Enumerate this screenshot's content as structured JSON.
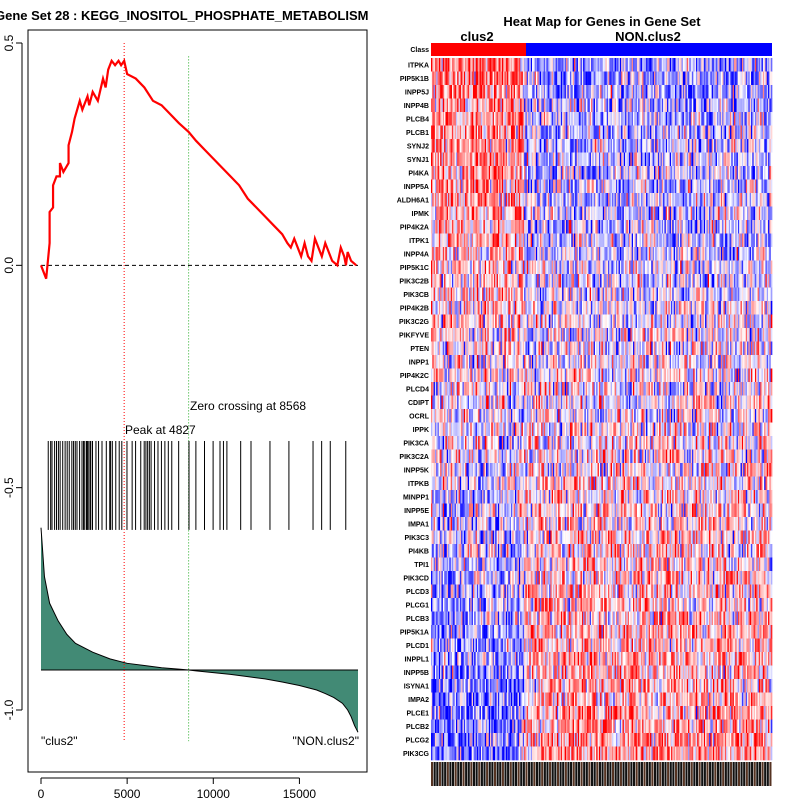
{
  "left_panel": {
    "title": "Gene Set  28 : KEGG_INOSITOL_PHOSPHATE_METABOLISM",
    "peak_label": "Peak at 4827",
    "zero_crossing_label": "Zero crossing at 8568",
    "left_class_label": "\"clus2\"",
    "right_class_label": "\"NON.clus2\"",
    "x_tick_labels": [
      "0",
      "5000",
      "10000",
      "15000"
    ],
    "y_tick_labels": [
      "0.5",
      "0.0",
      "-0.5",
      "-1.0"
    ]
  },
  "right_panel": {
    "title": "Heat Map for Genes in Gene Set",
    "class_row_label": "Class",
    "class_left_label": "clus2",
    "class_right_label": "NON.clus2",
    "class_left_color": "#ff0000",
    "class_right_color": "#0000ff",
    "genes": [
      "ITPKA",
      "PIP5K1B",
      "INPP5J",
      "INPP4B",
      "PLCB4",
      "PLCB1",
      "SYNJ2",
      "SYNJ1",
      "PI4KA",
      "INPP5A",
      "ALDH6A1",
      "IPMK",
      "PIP4K2A",
      "ITPK1",
      "INPP4A",
      "PIP5K1C",
      "PIK3C2B",
      "PIK3CB",
      "PIP4K2B",
      "PIK3C2G",
      "PIKFYVE",
      "PTEN",
      "INPP1",
      "PIP4K2C",
      "PLCD4",
      "CDIPT",
      "OCRL",
      "IPPK",
      "PIK3CA",
      "PIK3C2A",
      "INPP5K",
      "ITPKB",
      "MINPP1",
      "INPP5E",
      "IMPA1",
      "PIK3C3",
      "PI4KB",
      "TPI1",
      "PIK3CD",
      "PLCD3",
      "PLCG1",
      "PLCB3",
      "PIP5K1A",
      "PLCD1",
      "INPPL1",
      "INPP5B",
      "ISYNA1",
      "IMPA2",
      "PLCE1",
      "PLCB2",
      "PLCG2",
      "PIK3CG"
    ]
  },
  "chart_data": [
    {
      "type": "line",
      "title": "Gene Set  28 : KEGG_INOSITOL_PHOSPHATE_METABOLISM",
      "xlabel": "",
      "ylabel": "",
      "xlim": [
        -1000,
        19000
      ],
      "ylim": [
        -1.13,
        0.53
      ],
      "x_ticks": [
        0,
        5000,
        10000,
        15000
      ],
      "y_ticks": [
        0.5,
        0.0,
        -0.5,
        -1.0
      ],
      "series": [
        {
          "name": "Running enrichment score",
          "color": "#ff0000",
          "x": [
            0,
            300,
            500,
            500,
            700,
            700,
            900,
            1100,
            1100,
            1300,
            1600,
            1600,
            1800,
            1950,
            2100,
            2250,
            2400,
            2700,
            2800,
            3000,
            3300,
            3600,
            3750,
            3900,
            4100,
            4300,
            4500,
            4650,
            4827,
            5000,
            5500,
            6000,
            6500,
            7000,
            7500,
            8000,
            8568,
            9000,
            9500,
            10000,
            10500,
            11000,
            11500,
            12000,
            12500,
            13000,
            13500,
            14000,
            14300,
            14500,
            14700,
            14900,
            15100,
            15300,
            15500,
            15700,
            15900,
            16100,
            16300,
            16500,
            16700,
            16900,
            17200,
            17400,
            17600,
            17700,
            17800,
            18000,
            18300
          ],
          "y": [
            0.0,
            -0.03,
            0.05,
            0.12,
            0.13,
            0.18,
            0.2,
            0.2,
            0.23,
            0.21,
            0.23,
            0.27,
            0.3,
            0.33,
            0.35,
            0.37,
            0.35,
            0.38,
            0.36,
            0.39,
            0.37,
            0.42,
            0.4,
            0.44,
            0.46,
            0.45,
            0.46,
            0.45,
            0.46,
            0.43,
            0.42,
            0.4,
            0.37,
            0.36,
            0.34,
            0.32,
            0.3,
            0.28,
            0.26,
            0.24,
            0.22,
            0.2,
            0.18,
            0.15,
            0.13,
            0.11,
            0.09,
            0.07,
            0.05,
            0.04,
            0.06,
            0.04,
            0.02,
            0.05,
            0.02,
            0.01,
            0.06,
            0.04,
            0.02,
            0.05,
            0.03,
            0.01,
            0.0,
            0.04,
            0.02,
            0.0,
            0.03,
            0.01,
            0.0
          ]
        }
      ],
      "baseline_y": 0.0,
      "peak_x": 4827,
      "zero_crossing_x": 8568,
      "hit_positions": [
        420,
        560,
        640,
        790,
        900,
        1010,
        1110,
        1260,
        1400,
        1520,
        1640,
        1790,
        1890,
        1990,
        2090,
        2240,
        2380,
        2470,
        2540,
        2640,
        2690,
        2740,
        2840,
        2890,
        2990,
        3190,
        3340,
        3540,
        3790,
        3990,
        4040,
        4140,
        4340,
        4540,
        4690,
        4990,
        5290,
        5490,
        5790,
        5990,
        6090,
        6190,
        6290,
        6390,
        6590,
        6790,
        6990,
        7190,
        7390,
        7590,
        7990,
        8590,
        8990,
        9490,
        9990,
        10390,
        10590,
        10790,
        11590,
        12190,
        13290,
        14390,
        15790,
        16290,
        16790,
        17690
      ],
      "hit_band_y": [
        -0.395,
        -0.595
      ],
      "ranked_metric": {
        "name": "Ranked list metric",
        "color": "#428a75",
        "x": [
          0,
          200,
          500,
          1000,
          1500,
          2000,
          3000,
          4000,
          5000,
          6000,
          7000,
          8000,
          8568,
          9000,
          10000,
          11000,
          12000,
          13000,
          14000,
          15000,
          16000,
          16500,
          17000,
          17500,
          17800,
          18000,
          18200,
          18400
        ],
        "y": [
          -0.59,
          -0.7,
          -0.76,
          -0.8,
          -0.83,
          -0.85,
          -0.87,
          -0.885,
          -0.895,
          -0.9,
          -0.905,
          -0.908,
          -0.91,
          -0.912,
          -0.916,
          -0.92,
          -0.925,
          -0.93,
          -0.937,
          -0.945,
          -0.955,
          -0.963,
          -0.972,
          -0.985,
          -1.0,
          -1.015,
          -1.035,
          -1.05
        ],
        "baseline_y": -0.91
      }
    },
    {
      "type": "heatmap",
      "title": "Heat Map for Genes in Gene Set",
      "rows": "right_panel.genes",
      "column_groups": [
        {
          "name": "clus2",
          "columns": 71
        },
        {
          "name": "NON.clus2",
          "columns": 189
        }
      ],
      "colors": {
        "high": "#ff0000",
        "mid": "#ffffff",
        "low": "#0000ff"
      }
    }
  ]
}
